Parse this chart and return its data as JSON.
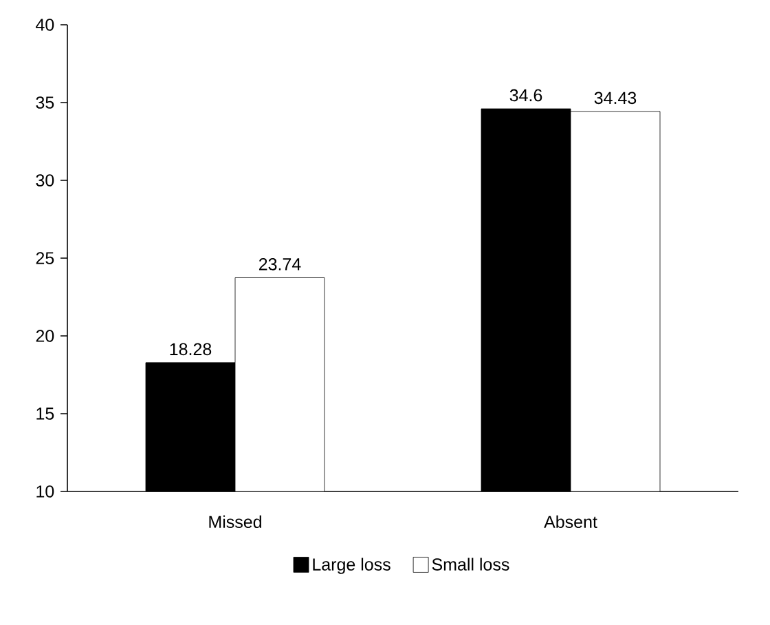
{
  "chart_data": {
    "type": "bar",
    "categories": [
      "Missed",
      "Absent"
    ],
    "series": [
      {
        "name": "Large loss",
        "color": "#000000",
        "values": [
          18.28,
          34.6
        ]
      },
      {
        "name": "Small loss",
        "color": "#ffffff",
        "values": [
          23.74,
          34.43
        ]
      }
    ],
    "ylim": [
      10,
      40
    ],
    "yticks": [
      10,
      15,
      20,
      25,
      30,
      35,
      40
    ],
    "data_labels": true,
    "legend": "bottom",
    "grid": false
  }
}
